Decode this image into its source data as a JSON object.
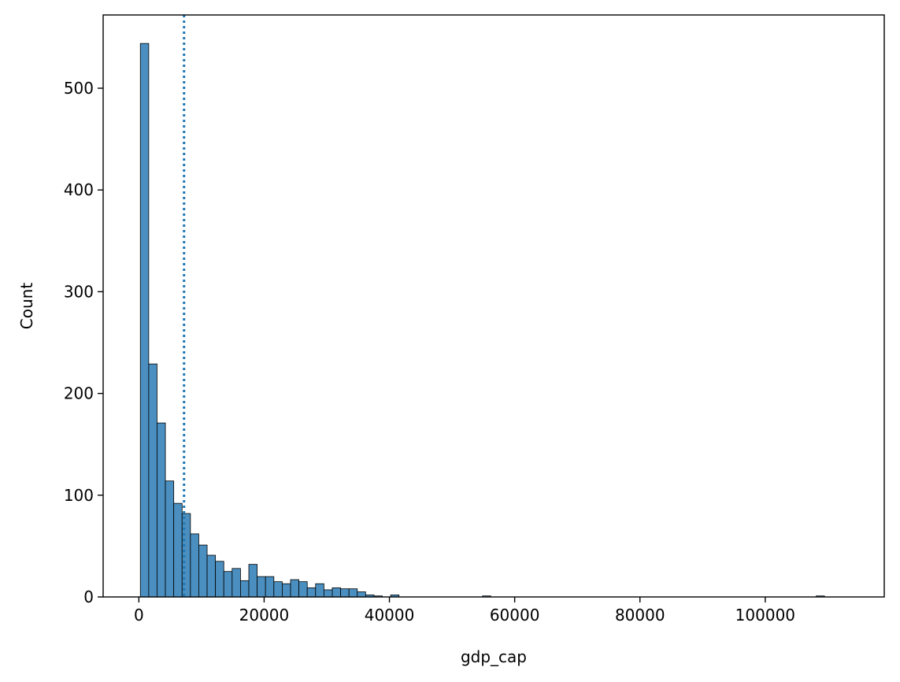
{
  "chart_data": {
    "type": "bar",
    "title": "",
    "xlabel": "gdp_cap",
    "ylabel": "Count",
    "xlim": [
      -5700,
      119000
    ],
    "ylim": [
      0,
      572
    ],
    "grid": false,
    "bar_color": "#4a8fc0",
    "edge_color": "#000000",
    "mean_line_color": "#1f77b4",
    "mean_line_x": 7215,
    "bins": {
      "start": 241,
      "width": 1332,
      "counts": [
        544,
        229,
        171,
        114,
        92,
        82,
        62,
        51,
        41,
        35,
        25,
        28,
        16,
        32,
        20,
        20,
        15,
        13,
        17,
        15,
        9,
        13,
        7,
        9,
        8,
        8,
        5,
        2,
        1,
        0,
        2,
        0,
        0,
        0,
        0,
        0,
        0,
        0,
        0,
        0,
        0,
        1,
        0,
        0,
        0,
        0,
        0,
        0,
        0,
        0,
        0,
        0,
        0,
        0,
        0,
        0,
        0,
        0,
        0,
        0,
        0,
        0,
        0,
        0,
        0,
        0,
        0,
        0,
        0,
        0,
        0,
        0,
        0,
        0,
        0,
        0,
        0,
        0,
        0,
        0,
        0,
        1
      ]
    },
    "xticks": [
      0,
      20000,
      40000,
      60000,
      80000,
      100000
    ],
    "xtick_labels": [
      "0",
      "20000",
      "40000",
      "60000",
      "80000",
      "100000"
    ],
    "yticks": [
      0,
      100,
      200,
      300,
      400,
      500
    ],
    "ytick_labels": [
      "0",
      "100",
      "200",
      "300",
      "400",
      "500"
    ]
  }
}
